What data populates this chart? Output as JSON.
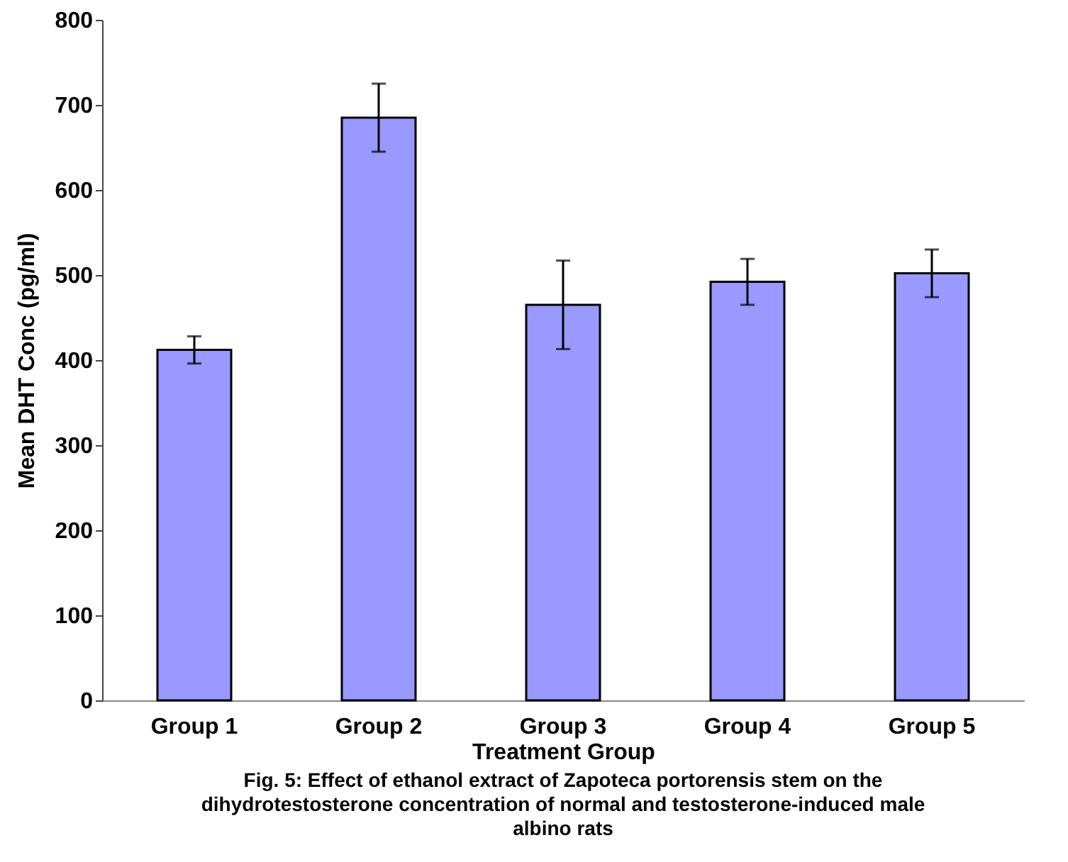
{
  "chart_data": {
    "type": "bar",
    "xlabel": "Treatment Group",
    "ylabel": "Mean DHT Conc (pg/ml)",
    "categories": [
      "Group 1",
      "Group 2",
      "Group 3",
      "Group 4",
      "Group 5"
    ],
    "values": [
      412,
      685,
      465,
      492,
      502
    ],
    "errors": [
      16,
      40,
      52,
      27,
      28
    ],
    "color": "#9999ff",
    "ylim": [
      0,
      800
    ],
    "yticks": [
      0,
      100,
      200,
      300,
      400,
      500,
      600,
      700,
      800
    ],
    "grid": false,
    "annotations": [
      "Fig. 5: Effect of ethanol extract of Zapoteca portorensis stem on the dihydrotestosterone concentration of normal and testosterone-induced male albino rats"
    ]
  }
}
